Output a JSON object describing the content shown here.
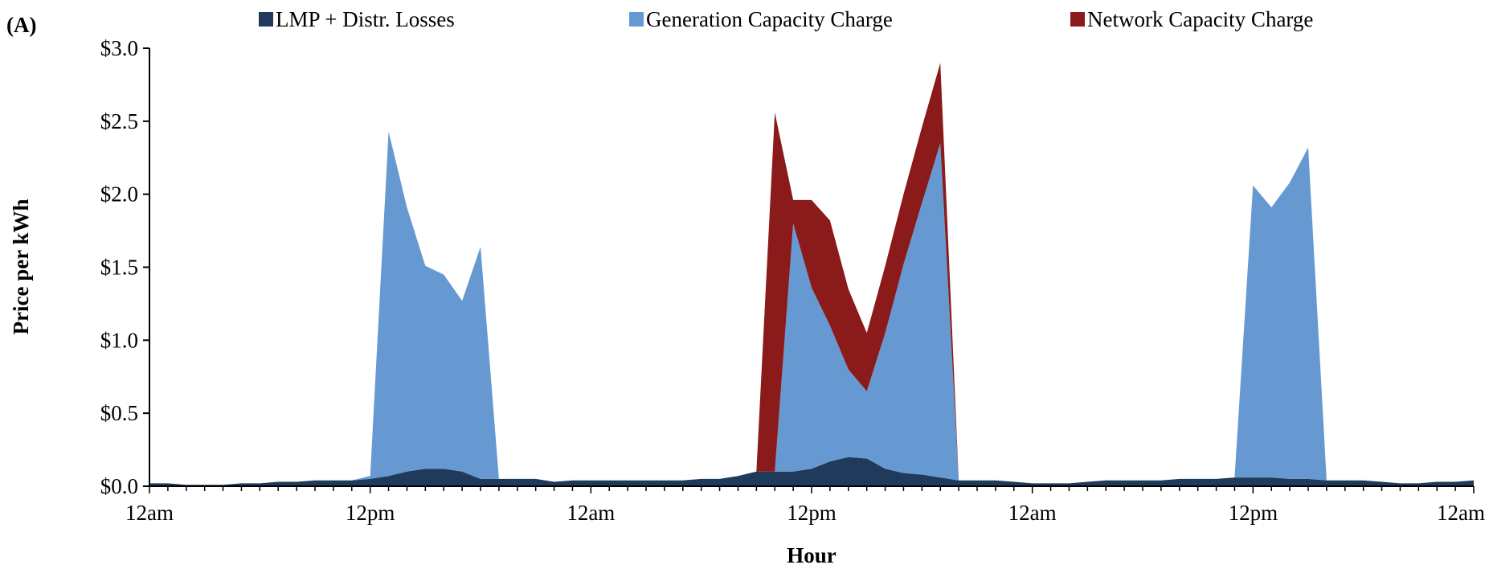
{
  "chart_data": {
    "type": "area",
    "stacked": true,
    "panel_label": "(A)",
    "title": "",
    "xlabel": "Hour",
    "ylabel": "Price per kWh",
    "ylim": [
      0,
      3.0
    ],
    "xlim": [
      0,
      72
    ],
    "yticks": [
      0,
      0.5,
      1.0,
      1.5,
      2.0,
      2.5,
      3.0
    ],
    "ytick_labels": [
      "$0.0",
      "$0.5",
      "$1.0",
      "$1.5",
      "$2.0",
      "$2.5",
      "$3.0"
    ],
    "xticks": [
      0,
      12,
      24,
      36,
      48,
      60,
      72
    ],
    "xtick_labels": [
      "12am",
      "12pm",
      "12am",
      "12pm",
      "12am",
      "12pm",
      "12am"
    ],
    "grid": false,
    "legend_position": "top",
    "x": [
      0,
      1,
      2,
      3,
      4,
      5,
      6,
      7,
      8,
      9,
      10,
      11,
      12,
      13,
      14,
      15,
      16,
      17,
      18,
      19,
      20,
      21,
      22,
      23,
      24,
      25,
      26,
      27,
      28,
      29,
      30,
      31,
      32,
      33,
      34,
      35,
      36,
      37,
      38,
      39,
      40,
      41,
      42,
      43,
      44,
      45,
      46,
      47,
      48,
      49,
      50,
      51,
      52,
      53,
      54,
      55,
      56,
      57,
      58,
      59,
      60,
      61,
      62,
      63,
      64,
      65,
      66,
      67,
      68,
      69,
      70,
      71,
      72
    ],
    "series": [
      {
        "name": "LMP + Distr. Losses",
        "color": "#1f3a5a",
        "values": [
          0.02,
          0.02,
          0.01,
          0.01,
          0.01,
          0.02,
          0.02,
          0.03,
          0.03,
          0.04,
          0.04,
          0.04,
          0.05,
          0.07,
          0.1,
          0.12,
          0.12,
          0.1,
          0.05,
          0.05,
          0.05,
          0.05,
          0.03,
          0.04,
          0.04,
          0.04,
          0.04,
          0.04,
          0.04,
          0.04,
          0.05,
          0.05,
          0.07,
          0.1,
          0.1,
          0.1,
          0.12,
          0.17,
          0.2,
          0.19,
          0.12,
          0.09,
          0.08,
          0.06,
          0.04,
          0.04,
          0.04,
          0.03,
          0.02,
          0.02,
          0.02,
          0.03,
          0.04,
          0.04,
          0.04,
          0.04,
          0.05,
          0.05,
          0.05,
          0.06,
          0.06,
          0.06,
          0.05,
          0.05,
          0.04,
          0.04,
          0.04,
          0.03,
          0.02,
          0.02,
          0.03,
          0.03,
          0.04
        ]
      },
      {
        "name": "Generation Capacity Charge",
        "color": "#6699d1",
        "values": [
          0,
          0,
          0,
          0,
          0,
          0,
          0,
          0,
          0,
          0,
          0,
          0,
          0.02,
          2.36,
          1.81,
          1.39,
          1.33,
          1.17,
          1.59,
          0,
          0,
          0,
          0,
          0,
          0,
          0,
          0,
          0,
          0,
          0,
          0,
          0,
          0,
          0,
          0,
          1.7,
          1.24,
          0.93,
          0.6,
          0.46,
          0.93,
          1.43,
          1.86,
          2.29,
          0,
          0,
          0,
          0,
          0,
          0,
          0,
          0,
          0,
          0,
          0,
          0,
          0,
          0,
          0,
          0,
          2.0,
          1.85,
          2.03,
          2.27,
          0,
          0,
          0,
          0,
          0,
          0,
          0,
          0,
          0
        ]
      },
      {
        "name": "Network Capacity Charge",
        "color": "#8b1a1a",
        "values": [
          0,
          0,
          0,
          0,
          0,
          0,
          0,
          0,
          0,
          0,
          0,
          0,
          0,
          0,
          0,
          0,
          0,
          0,
          0,
          0,
          0,
          0,
          0,
          0,
          0,
          0,
          0,
          0,
          0,
          0,
          0,
          0,
          0,
          0,
          2.46,
          0.16,
          0.6,
          0.72,
          0.55,
          0.4,
          0.46,
          0.48,
          0.52,
          0.55,
          0,
          0,
          0,
          0,
          0,
          0,
          0,
          0,
          0,
          0,
          0,
          0,
          0,
          0,
          0,
          0,
          0,
          0,
          0,
          0,
          0,
          0,
          0,
          0,
          0,
          0,
          0,
          0,
          0
        ]
      }
    ]
  }
}
